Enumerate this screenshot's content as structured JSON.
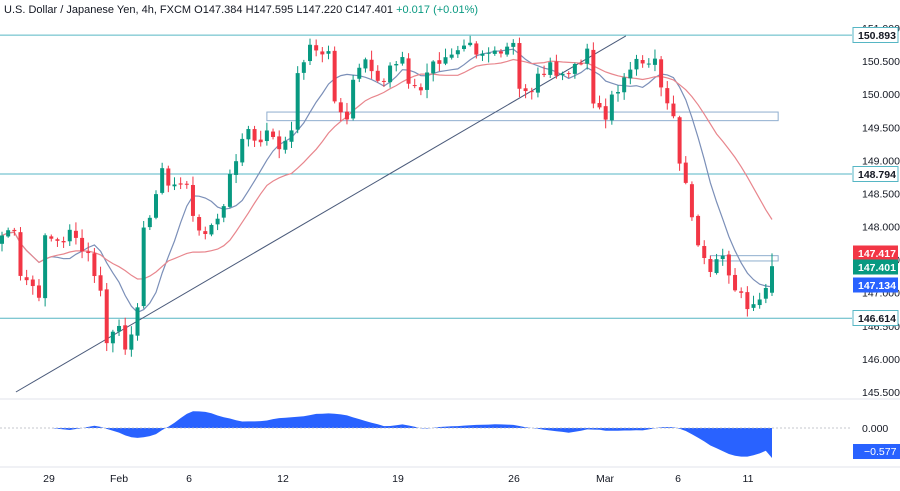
{
  "header": {
    "symbol": "U.S. Dollar / Japanese Yen, 4h, FXCM",
    "open": "O147.384",
    "high": "H147.595",
    "low": "L147.220",
    "close": "C147.401",
    "change": "+0.017 (+0.01%)"
  },
  "colors": {
    "up": "#089981",
    "down": "#f23645",
    "fast_ma": "#7b8fb8",
    "slow_ma": "#e8868d",
    "level_line": "#56b6c4",
    "trendline": "#4a5a7a",
    "oscillator": "#2962ff"
  },
  "chart_data": [
    {
      "type": "candlestick",
      "price_axis": {
        "range": [
          145.5,
          151.0
        ],
        "ticks": [
          "151.000",
          "150.500",
          "150.000",
          "149.500",
          "149.000",
          "148.500",
          "148.000",
          "147.500",
          "147.000",
          "146.500",
          "146.000",
          "145.500"
        ]
      },
      "time_axis": {
        "ticks": [
          "29",
          "Feb",
          "6",
          "12",
          "19",
          "26",
          "Mar",
          "6",
          "11"
        ]
      },
      "price_labels": [
        {
          "text": "150.893",
          "value": 150.893,
          "style": "level"
        },
        {
          "text": "148.794",
          "value": 148.794,
          "style": "level"
        },
        {
          "text": "147.417",
          "value": 147.417,
          "style": "down"
        },
        {
          "text": "147.401",
          "value": 147.401,
          "style": "up"
        },
        {
          "text": "147.134",
          "value": 147.134,
          "style": "blue"
        },
        {
          "text": "146.614",
          "value": 146.614,
          "style": "level"
        }
      ],
      "horizontal_levels": [
        150.893,
        148.794,
        146.614
      ],
      "zones": [
        {
          "start_date": "Feb 10",
          "end_date": "Mar 12",
          "low": 149.6,
          "high": 149.73
        },
        {
          "start_date": "Mar 7",
          "end_date": "Mar 12",
          "low": 147.48,
          "high": 147.56
        }
      ],
      "trendline": {
        "from": {
          "date": "Jan 30",
          "price": 145.5
        },
        "to": {
          "date": "Feb 29",
          "price": 150.88
        }
      },
      "segments": [
        [
          0,
          147.8,
          0.2,
          3
        ],
        [
          3,
          147.4,
          -0.4,
          4
        ],
        [
          7,
          147.8,
          0.0,
          4
        ],
        [
          11,
          148.0,
          -0.3,
          3
        ],
        [
          14,
          147.9,
          -0.9,
          3
        ],
        [
          17,
          146.2,
          0.2,
          2
        ],
        [
          19,
          146.8,
          -0.6,
          2
        ],
        [
          21,
          146.2,
          0.5,
          2
        ],
        [
          23,
          147.6,
          1.2,
          4
        ],
        [
          27,
          148.7,
          -0.1,
          4
        ],
        [
          31,
          148.4,
          -0.6,
          3
        ],
        [
          34,
          147.9,
          0.4,
          3
        ],
        [
          37,
          148.6,
          0.9,
          4
        ],
        [
          41,
          149.3,
          0.1,
          4
        ],
        [
          45,
          148.9,
          0.6,
          3
        ],
        [
          48,
          150.1,
          0.6,
          3
        ],
        [
          51,
          150.6,
          0.1,
          3
        ],
        [
          54,
          150.0,
          -0.3,
          3
        ],
        [
          57,
          150.1,
          0.4,
          3
        ],
        [
          60,
          150.3,
          -0.1,
          3
        ],
        [
          63,
          150.4,
          0.1,
          3
        ],
        [
          66,
          150.2,
          -0.1,
          3
        ],
        [
          69,
          150.3,
          0.3,
          4
        ],
        [
          73,
          150.5,
          0.2,
          4
        ],
        [
          77,
          150.5,
          0.1,
          3
        ],
        [
          80,
          150.6,
          0.2,
          4
        ],
        [
          84,
          150.2,
          -0.2,
          3
        ],
        [
          87,
          150.2,
          0.2,
          3
        ],
        [
          90,
          150.4,
          -0.1,
          3
        ],
        [
          93,
          150.4,
          0.2,
          3
        ],
        [
          96,
          150.0,
          -0.4,
          3
        ],
        [
          99,
          149.9,
          0.4,
          4
        ],
        [
          103,
          150.6,
          -0.1,
          4
        ],
        [
          107,
          150.3,
          -0.7,
          3
        ],
        [
          110,
          149.4,
          -1.2,
          3
        ],
        [
          113,
          148.0,
          -0.6,
          3
        ],
        [
          116,
          147.5,
          0.0,
          2
        ],
        [
          118,
          147.3,
          -0.3,
          3
        ],
        [
          121,
          146.8,
          0.1,
          3
        ],
        [
          124,
          146.9,
          0.5,
          2
        ]
      ],
      "moving_averages": [
        {
          "period": 9,
          "color": "fast_ma"
        },
        {
          "period": 21,
          "color": "slow_ma"
        }
      ]
    },
    {
      "type": "area",
      "role": "oscillator",
      "zero_label": "0.000",
      "last_value_label": "−0.577",
      "last_value": -0.577,
      "range": [
        -0.7,
        0.5
      ]
    }
  ]
}
